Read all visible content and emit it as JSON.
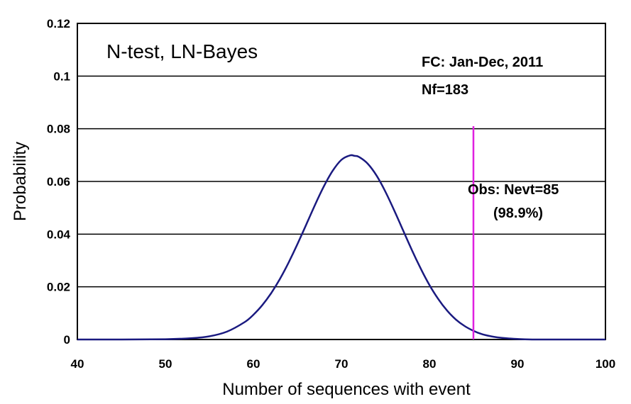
{
  "chart_data": {
    "type": "line",
    "title": "N-test, LN-Bayes",
    "xlabel": "Number of sequences with event",
    "ylabel": "Probability",
    "xlim": [
      40,
      100
    ],
    "ylim": [
      0,
      0.12
    ],
    "x_ticks": [
      40,
      50,
      60,
      70,
      80,
      90,
      100
    ],
    "y_ticks": [
      0,
      0.02,
      0.04,
      0.06,
      0.08,
      0.1,
      0.12
    ],
    "y_tick_labels": [
      "0",
      "0.02",
      "0.04",
      "0.06",
      "0.08",
      "0.1",
      "0.12"
    ],
    "grid": "horizontal",
    "series": [
      {
        "color": "#1a1a80",
        "x": [
          40,
          45,
          50,
          53,
          55,
          57,
          59,
          60,
          61,
          62,
          63,
          64,
          65,
          66,
          67,
          68,
          69,
          70,
          71,
          71.5,
          72,
          73,
          74,
          75,
          76,
          77,
          78,
          79,
          80,
          81,
          82,
          83,
          84,
          85,
          86,
          87,
          88,
          89,
          90,
          92,
          95,
          100
        ],
        "y": [
          0,
          0,
          0.0001,
          0.0005,
          0.0012,
          0.003,
          0.0066,
          0.0094,
          0.013,
          0.0175,
          0.0229,
          0.0292,
          0.0362,
          0.0436,
          0.0511,
          0.0581,
          0.064,
          0.0682,
          0.0699,
          0.0697,
          0.0693,
          0.0667,
          0.0622,
          0.0561,
          0.049,
          0.0415,
          0.034,
          0.027,
          0.0207,
          0.0154,
          0.011,
          0.0076,
          0.0051,
          0.0033,
          0.002,
          0.0012,
          0.0007,
          0.0004,
          0.0002,
          0,
          0,
          0
        ]
      }
    ],
    "annotations": {
      "forecast": "FC: Jan-Dec, 2011",
      "nf": "Nf=183",
      "obs_line1": "Obs: Nevt=85",
      "obs_line2": "(98.9%)"
    },
    "observed": {
      "x": 85,
      "y_top": 0.081,
      "color": "#e020e0"
    }
  }
}
